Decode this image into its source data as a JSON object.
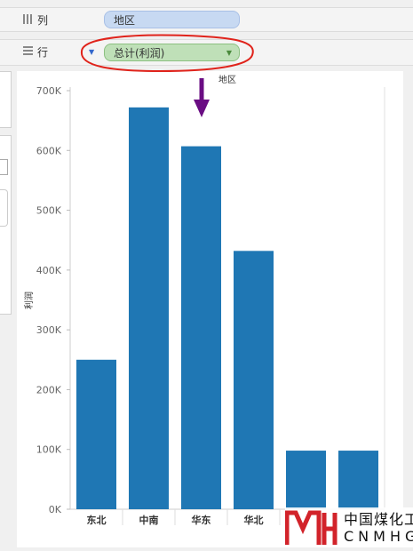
{
  "shelves": {
    "columns": {
      "label": "列",
      "pill": "地区"
    },
    "rows": {
      "label": "行",
      "pill": "总计(利润)"
    }
  },
  "colors": {
    "bar": "#1f77b4",
    "annotation_red": "#e0231b",
    "arrow_purple": "#6a0d83"
  },
  "logo": {
    "cn": "中国煤化工",
    "en": "CNMHG"
  },
  "chart_data": {
    "type": "bar",
    "header": "地区",
    "ylabel": "利润",
    "xlabel": "",
    "categories": [
      "东北",
      "中南",
      "华东",
      "华北",
      "",
      ""
    ],
    "values": [
      250000,
      672000,
      607000,
      432000,
      98000,
      98000
    ],
    "ylim": [
      0,
      700000
    ],
    "yticks": [
      "0K",
      "100K",
      "200K",
      "300K",
      "400K",
      "500K",
      "600K",
      "700K"
    ],
    "grid": false,
    "legend": "none"
  }
}
